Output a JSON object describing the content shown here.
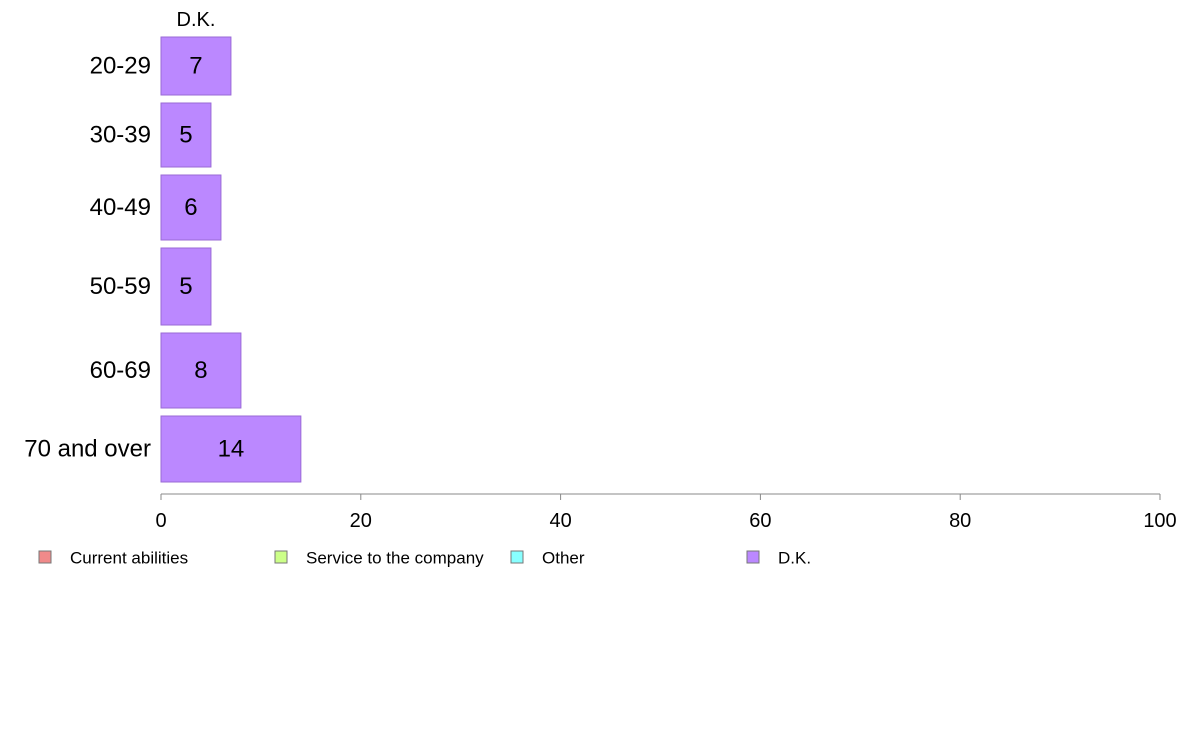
{
  "chart_data": {
    "type": "bar",
    "orientation": "horizontal",
    "stacked": true,
    "categories": [
      "20-29",
      "30-39",
      "40-49",
      "50-59",
      "60-69",
      "70 and over"
    ],
    "series": [
      {
        "name": "Current abilities",
        "color": "#f08a8a",
        "values": [
          0,
          0,
          0,
          0,
          0,
          0
        ]
      },
      {
        "name": "Service to the company",
        "color": "#ccff88",
        "values": [
          0,
          0,
          0,
          0,
          0,
          0
        ]
      },
      {
        "name": "Other",
        "color": "#88ffff",
        "values": [
          0,
          0,
          0,
          0,
          0,
          0
        ]
      },
      {
        "name": "D.K.",
        "color": "#bb88ff",
        "values": [
          7,
          5,
          6,
          5,
          8,
          14
        ]
      }
    ],
    "visible_series_header": "D.K.",
    "xlim": [
      0,
      100
    ],
    "xticks": [
      0,
      20,
      40,
      60,
      80,
      100
    ],
    "grid": false,
    "legend_position": "bottom"
  }
}
